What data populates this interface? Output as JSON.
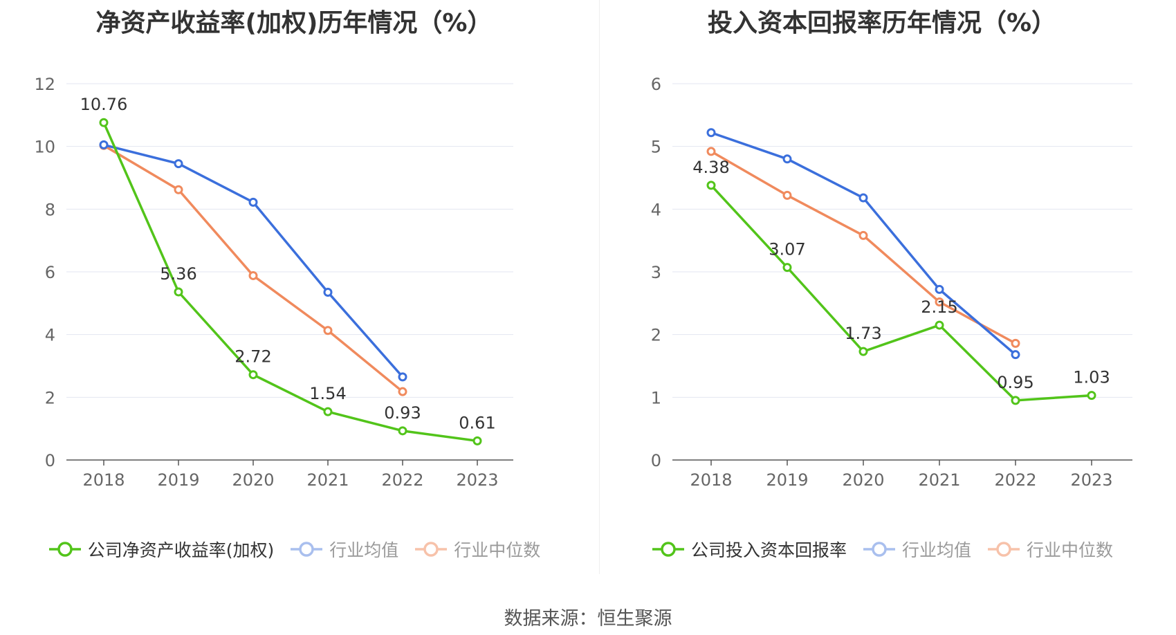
{
  "source": "数据来源：恒生聚源",
  "chart_data": [
    {
      "type": "line",
      "title": "净资产收益率(加权)历年情况（%）",
      "categories": [
        "2018",
        "2019",
        "2020",
        "2021",
        "2022",
        "2023"
      ],
      "ylim": [
        0,
        12
      ],
      "yticks": [
        "0",
        "2",
        "4",
        "6",
        "8",
        "10",
        "12"
      ],
      "grid": true,
      "legend_position": "bottom",
      "series": [
        {
          "name": "公司净资产收益率(加权)",
          "color": "#52c41a",
          "values": [
            10.76,
            5.36,
            2.72,
            1.54,
            0.93,
            0.61
          ],
          "labels": [
            "10.76",
            "5.36",
            "2.72",
            "1.54",
            "0.93",
            "0.61"
          ]
        },
        {
          "name": "行业均值",
          "color": "#3b6fdc",
          "values": [
            10.05,
            9.45,
            8.22,
            5.35,
            2.65,
            null
          ]
        },
        {
          "name": "行业中位数",
          "color": "#f08a5d",
          "values": [
            10.03,
            8.62,
            5.88,
            4.13,
            2.18,
            null
          ]
        }
      ]
    },
    {
      "type": "line",
      "title": "投入资本回报率历年情况（%）",
      "categories": [
        "2018",
        "2019",
        "2020",
        "2021",
        "2022",
        "2023"
      ],
      "ylim": [
        0,
        6
      ],
      "yticks": [
        "0",
        "1",
        "2",
        "3",
        "4",
        "5",
        "6"
      ],
      "grid": true,
      "legend_position": "bottom",
      "series": [
        {
          "name": "公司投入资本回报率",
          "color": "#52c41a",
          "values": [
            4.38,
            3.07,
            1.73,
            2.15,
            0.95,
            1.03
          ],
          "labels": [
            "4.38",
            "3.07",
            "1.73",
            "2.15",
            "0.95",
            "1.03"
          ]
        },
        {
          "name": "行业均值",
          "color": "#3b6fdc",
          "values": [
            5.22,
            4.8,
            4.18,
            2.72,
            1.68,
            null
          ]
        },
        {
          "name": "行业中位数",
          "color": "#f08a5d",
          "values": [
            4.92,
            4.22,
            3.58,
            2.52,
            1.86,
            null
          ]
        }
      ]
    }
  ]
}
